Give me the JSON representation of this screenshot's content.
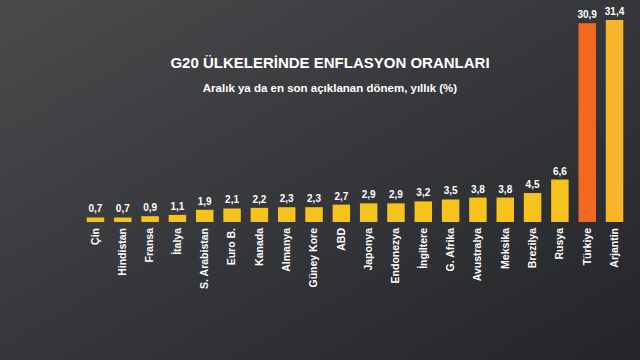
{
  "chart_data": {
    "type": "bar",
    "title": "G20 ÜLKELERİNDE ENFLASYON ORANLARI",
    "subtitle": "Aralık ya da en son açıklanan dönem, yıllık (%)",
    "categories": [
      "Çin",
      "Hindistan",
      "Fransa",
      "İtalya",
      "S. Arabistan",
      "Euro B.",
      "Kanada",
      "Almanya",
      "Güney Kore",
      "ABD",
      "Japonya",
      "Endonezya",
      "İngiltere",
      "G. Afrika",
      "Avustralya",
      "Meksika",
      "Brezilya",
      "Rusya",
      "Türkiye",
      "Arjantin"
    ],
    "values": [
      0.7,
      0.7,
      0.9,
      1.1,
      1.9,
      2.1,
      2.2,
      2.3,
      2.3,
      2.7,
      2.9,
      2.9,
      3.2,
      3.5,
      3.8,
      3.8,
      4.5,
      6.6,
      30.9,
      31.4
    ],
    "value_labels": [
      "0,7",
      "0,7",
      "0,9",
      "1,1",
      "1,9",
      "2,1",
      "2,2",
      "2,3",
      "2,3",
      "2,7",
      "2,9",
      "2,9",
      "3,2",
      "3,5",
      "3,8",
      "3,8",
      "4,5",
      "6,6",
      "30,9",
      "31,4"
    ],
    "colors": [
      "#f6c31c",
      "#f6c31c",
      "#f6c31c",
      "#f6c31c",
      "#f6c31c",
      "#f6c31c",
      "#f6c31c",
      "#f6c31c",
      "#f6c31c",
      "#f6c31c",
      "#f6c31c",
      "#f6c31c",
      "#f6c31c",
      "#f6c31c",
      "#f6c31c",
      "#f6c31c",
      "#f6c31c",
      "#f6c31c",
      "#f26a21",
      "#f7b52a"
    ],
    "data_labels": true,
    "tick_labels": "x",
    "grid": false
  }
}
